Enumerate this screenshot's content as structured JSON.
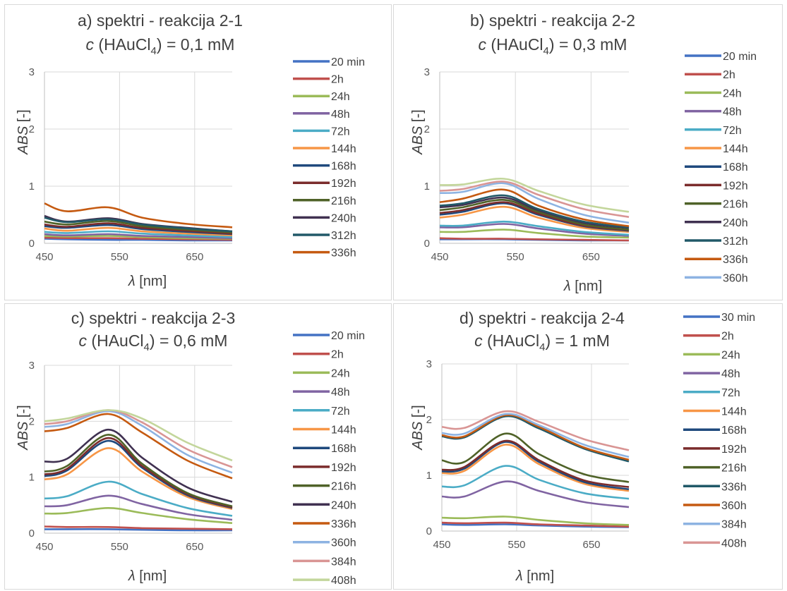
{
  "chart_data": [
    {
      "type": "line",
      "title": "a) spektri - reakcija 2-1",
      "subtitle_prefix": "c",
      "subtitle_mid": " (HAuCl",
      "subtitle_sub": "4",
      "subtitle_suffix": ") = 0,1 mM",
      "xlabel_sym": "λ",
      "xlabel_unit": " [nm]",
      "ylabel_sym": "ABS",
      "ylabel_unit": " [-]",
      "xlim": [
        450,
        700
      ],
      "ylim": [
        0,
        3
      ],
      "xticks": [
        "450",
        "550",
        "650"
      ],
      "yticks": [
        "0",
        "1",
        "2",
        "3"
      ],
      "grid": true,
      "legend_position": "right",
      "series": [
        {
          "name": "20 min",
          "color": "#4472c4",
          "y": [
            0.08,
            0.07,
            0.06,
            0.06,
            0.05,
            0.05
          ]
        },
        {
          "name": "2h",
          "color": "#c0504d",
          "y": [
            0.1,
            0.09,
            0.09,
            0.08,
            0.07,
            0.06
          ]
        },
        {
          "name": "24h",
          "color": "#9bbb59",
          "y": [
            0.13,
            0.12,
            0.13,
            0.11,
            0.09,
            0.08
          ]
        },
        {
          "name": "48h",
          "color": "#8064a2",
          "y": [
            0.16,
            0.14,
            0.16,
            0.13,
            0.11,
            0.09
          ]
        },
        {
          "name": "72h",
          "color": "#4bacc6",
          "y": [
            0.2,
            0.18,
            0.21,
            0.17,
            0.14,
            0.11
          ]
        },
        {
          "name": "144h",
          "color": "#f79646",
          "y": [
            0.26,
            0.22,
            0.27,
            0.21,
            0.17,
            0.14
          ]
        },
        {
          "name": "168h",
          "color": "#1f497d",
          "y": [
            0.3,
            0.27,
            0.32,
            0.25,
            0.2,
            0.16
          ]
        },
        {
          "name": "192h",
          "color": "#7b2c2c",
          "y": [
            0.33,
            0.29,
            0.35,
            0.27,
            0.22,
            0.17
          ]
        },
        {
          "name": "216h",
          "color": "#4f6228",
          "y": [
            0.38,
            0.33,
            0.39,
            0.3,
            0.24,
            0.19
          ]
        },
        {
          "name": "240h",
          "color": "#403151",
          "y": [
            0.48,
            0.38,
            0.44,
            0.34,
            0.27,
            0.21
          ]
        },
        {
          "name": "312h",
          "color": "#215968",
          "y": [
            0.45,
            0.37,
            0.42,
            0.33,
            0.26,
            0.21
          ]
        },
        {
          "name": "336h",
          "color": "#c55a11",
          "y": [
            0.7,
            0.56,
            0.63,
            0.45,
            0.34,
            0.28
          ]
        }
      ]
    },
    {
      "type": "line",
      "title": "b) spektri - reakcija 2-2",
      "subtitle_prefix": "c",
      "subtitle_mid": " (HAuCl",
      "subtitle_sub": "4",
      "subtitle_suffix": ") = 0,3 mM",
      "xlabel_sym": "λ",
      "xlabel_unit": " [nm]",
      "ylabel_sym": "ABS",
      "ylabel_unit": " [-]",
      "xlim": [
        450,
        700
      ],
      "ylim": [
        0,
        3
      ],
      "xticks": [
        "450",
        "550",
        "650"
      ],
      "yticks": [
        "0",
        "1",
        "2",
        "3"
      ],
      "grid": true,
      "legend_position": "right",
      "series": [
        {
          "name": "20 min",
          "color": "#4472c4",
          "y": [
            0.07,
            0.07,
            0.07,
            0.06,
            0.05,
            0.05
          ]
        },
        {
          "name": "2h",
          "color": "#c0504d",
          "y": [
            0.09,
            0.08,
            0.08,
            0.07,
            0.06,
            0.05
          ]
        },
        {
          "name": "24h",
          "color": "#9bbb59",
          "y": [
            0.2,
            0.2,
            0.24,
            0.18,
            0.12,
            0.1
          ]
        },
        {
          "name": "48h",
          "color": "#8064a2",
          "y": [
            0.28,
            0.28,
            0.34,
            0.26,
            0.17,
            0.13
          ]
        },
        {
          "name": "72h",
          "color": "#4bacc6",
          "y": [
            0.31,
            0.31,
            0.38,
            0.3,
            0.2,
            0.15
          ]
        },
        {
          "name": "144h",
          "color": "#f79646",
          "y": [
            0.45,
            0.5,
            0.64,
            0.45,
            0.27,
            0.2
          ]
        },
        {
          "name": "168h",
          "color": "#1f497d",
          "y": [
            0.5,
            0.55,
            0.7,
            0.5,
            0.3,
            0.22
          ]
        },
        {
          "name": "192h",
          "color": "#7b2c2c",
          "y": [
            0.53,
            0.58,
            0.72,
            0.52,
            0.31,
            0.23
          ]
        },
        {
          "name": "216h",
          "color": "#4f6228",
          "y": [
            0.58,
            0.63,
            0.76,
            0.55,
            0.33,
            0.24
          ]
        },
        {
          "name": "240h",
          "color": "#403151",
          "y": [
            0.63,
            0.67,
            0.8,
            0.58,
            0.36,
            0.27
          ]
        },
        {
          "name": "312h",
          "color": "#215968",
          "y": [
            0.66,
            0.7,
            0.84,
            0.6,
            0.38,
            0.28
          ]
        },
        {
          "name": "336h",
          "color": "#c55a11",
          "y": [
            0.72,
            0.78,
            0.94,
            0.66,
            0.42,
            0.3
          ]
        },
        {
          "name": "360h",
          "color": "#8db3e2",
          "y": [
            0.88,
            0.9,
            1.05,
            0.78,
            0.5,
            0.36
          ]
        },
        {
          "name": "",
          "color": "#d99594",
          "y": [
            0.92,
            0.95,
            1.08,
            0.85,
            0.6,
            0.46
          ]
        },
        {
          "name": "",
          "color": "#c3d69b",
          "y": [
            1.02,
            1.03,
            1.13,
            0.92,
            0.68,
            0.55
          ]
        }
      ]
    },
    {
      "type": "line",
      "title": "c) spektri - reakcija 2-3",
      "subtitle_prefix": "c",
      "subtitle_mid": " (HAuCl",
      "subtitle_sub": "4",
      "subtitle_suffix": ") = 0,6 mM",
      "xlabel_sym": "λ",
      "xlabel_unit": " [nm]",
      "ylabel_sym": "ABS",
      "ylabel_unit": " [-]",
      "xlim": [
        450,
        700
      ],
      "ylim": [
        0,
        3
      ],
      "xticks": [
        "450",
        "550",
        "650"
      ],
      "yticks": [
        "0",
        "1",
        "2",
        "3"
      ],
      "grid": true,
      "legend_position": "right",
      "series": [
        {
          "name": "20 min",
          "color": "#4472c4",
          "y": [
            0.07,
            0.07,
            0.07,
            0.06,
            0.05,
            0.05
          ]
        },
        {
          "name": "2h",
          "color": "#c0504d",
          "y": [
            0.12,
            0.11,
            0.11,
            0.09,
            0.08,
            0.07
          ]
        },
        {
          "name": "24h",
          "color": "#9bbb59",
          "y": [
            0.35,
            0.36,
            0.45,
            0.36,
            0.25,
            0.18
          ]
        },
        {
          "name": "48h",
          "color": "#8064a2",
          "y": [
            0.48,
            0.5,
            0.67,
            0.52,
            0.34,
            0.24
          ]
        },
        {
          "name": "72h",
          "color": "#4bacc6",
          "y": [
            0.62,
            0.66,
            0.92,
            0.7,
            0.45,
            0.31
          ]
        },
        {
          "name": "144h",
          "color": "#f79646",
          "y": [
            0.96,
            1.05,
            1.52,
            1.1,
            0.65,
            0.43
          ]
        },
        {
          "name": "168h",
          "color": "#1f497d",
          "y": [
            1.02,
            1.12,
            1.65,
            1.17,
            0.68,
            0.45
          ]
        },
        {
          "name": "192h",
          "color": "#7b2c2c",
          "y": [
            1.05,
            1.15,
            1.7,
            1.2,
            0.7,
            0.46
          ]
        },
        {
          "name": "216h",
          "color": "#4f6228",
          "y": [
            1.1,
            1.2,
            1.76,
            1.24,
            0.72,
            0.48
          ]
        },
        {
          "name": "240h",
          "color": "#403151",
          "y": [
            1.28,
            1.33,
            1.85,
            1.35,
            0.82,
            0.56
          ]
        },
        {
          "name": "336h",
          "color": "#c55a11",
          "y": [
            1.82,
            1.88,
            2.13,
            1.8,
            1.3,
            0.98
          ]
        },
        {
          "name": "360h",
          "color": "#8db3e2",
          "y": [
            1.9,
            1.95,
            2.18,
            1.92,
            1.4,
            1.08
          ]
        },
        {
          "name": "384h",
          "color": "#d99594",
          "y": [
            1.95,
            2.0,
            2.2,
            1.98,
            1.5,
            1.18
          ]
        },
        {
          "name": "408h",
          "color": "#c3d69b",
          "y": [
            2.0,
            2.05,
            2.2,
            2.05,
            1.62,
            1.3
          ]
        }
      ]
    },
    {
      "type": "line",
      "title": "d) spektri - reakcija 2-4",
      "subtitle_prefix": "c",
      "subtitle_mid": " (HAuCl",
      "subtitle_sub": "4",
      "subtitle_suffix": ") = 1 mM",
      "xlabel_sym": "λ",
      "xlabel_unit": " [nm]",
      "ylabel_sym": "ABS",
      "ylabel_unit": " [-]",
      "xlim": [
        450,
        700
      ],
      "ylim": [
        0,
        3
      ],
      "xticks": [
        "450",
        "550",
        "650"
      ],
      "yticks": [
        "0",
        "1",
        "2",
        "3"
      ],
      "grid": true,
      "legend_position": "right",
      "series": [
        {
          "name": "30 min",
          "color": "#4472c4",
          "y": [
            0.12,
            0.11,
            0.12,
            0.1,
            0.08,
            0.07
          ]
        },
        {
          "name": "2h",
          "color": "#c0504d",
          "y": [
            0.15,
            0.14,
            0.15,
            0.12,
            0.1,
            0.08
          ]
        },
        {
          "name": "24h",
          "color": "#9bbb59",
          "y": [
            0.24,
            0.23,
            0.26,
            0.2,
            0.14,
            0.11
          ]
        },
        {
          "name": "48h",
          "color": "#8064a2",
          "y": [
            0.62,
            0.62,
            0.89,
            0.72,
            0.52,
            0.43
          ]
        },
        {
          "name": "72h",
          "color": "#4bacc6",
          "y": [
            0.8,
            0.82,
            1.17,
            0.92,
            0.68,
            0.58
          ]
        },
        {
          "name": "144h",
          "color": "#f79646",
          "y": [
            1.04,
            1.08,
            1.55,
            1.2,
            0.85,
            0.72
          ]
        },
        {
          "name": "168h",
          "color": "#1f497d",
          "y": [
            1.07,
            1.12,
            1.6,
            1.24,
            0.88,
            0.75
          ]
        },
        {
          "name": "192h",
          "color": "#7b2c2c",
          "y": [
            1.1,
            1.15,
            1.62,
            1.27,
            0.91,
            0.79
          ]
        },
        {
          "name": "216h",
          "color": "#4f6228",
          "y": [
            1.27,
            1.24,
            1.75,
            1.38,
            1.02,
            0.88
          ]
        },
        {
          "name": "336h",
          "color": "#215968",
          "y": [
            1.7,
            1.68,
            2.06,
            1.84,
            1.48,
            1.25
          ]
        },
        {
          "name": "360h",
          "color": "#c55a11",
          "y": [
            1.72,
            1.7,
            2.08,
            1.87,
            1.5,
            1.28
          ]
        },
        {
          "name": "384h",
          "color": "#8db3e2",
          "y": [
            1.76,
            1.75,
            2.1,
            1.9,
            1.55,
            1.33
          ]
        },
        {
          "name": "408h",
          "color": "#d99594",
          "y": [
            1.87,
            1.85,
            2.15,
            1.96,
            1.65,
            1.45
          ]
        }
      ]
    }
  ],
  "x_samples": [
    450,
    480,
    535,
    580,
    640,
    700
  ]
}
